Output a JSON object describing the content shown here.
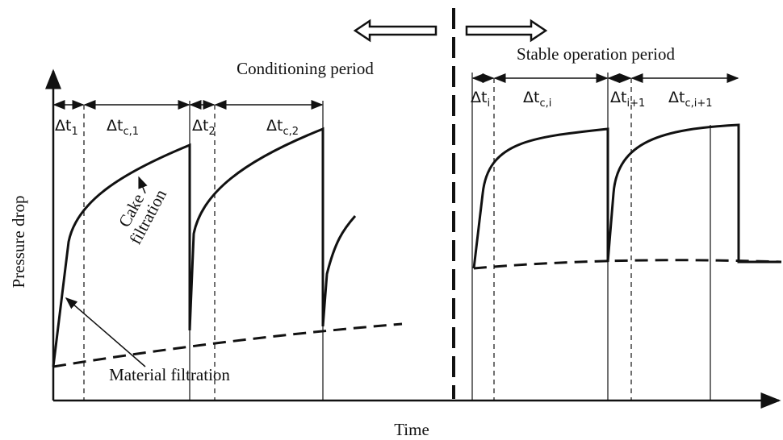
{
  "periods": {
    "left": "Conditioning period",
    "right": "Stable operation period"
  },
  "axes": {
    "y": "Pressure drop",
    "x": "Time"
  },
  "annotations": {
    "cake": [
      "Cake",
      "filtration"
    ],
    "material": "Material filtration"
  },
  "intervals": [
    {
      "base": "Δt",
      "sub": "1"
    },
    {
      "base": "Δt",
      "sub": "c,1"
    },
    {
      "base": "Δt",
      "sub": "2"
    },
    {
      "base": "Δt",
      "sub": "c,2"
    },
    {
      "base": "Δt",
      "sub": "i"
    },
    {
      "base": "Δt",
      "sub": "c,i"
    },
    {
      "base": "Δt",
      "sub": "i+1"
    },
    {
      "base": "Δt",
      "sub": "c,i+1"
    }
  ]
}
